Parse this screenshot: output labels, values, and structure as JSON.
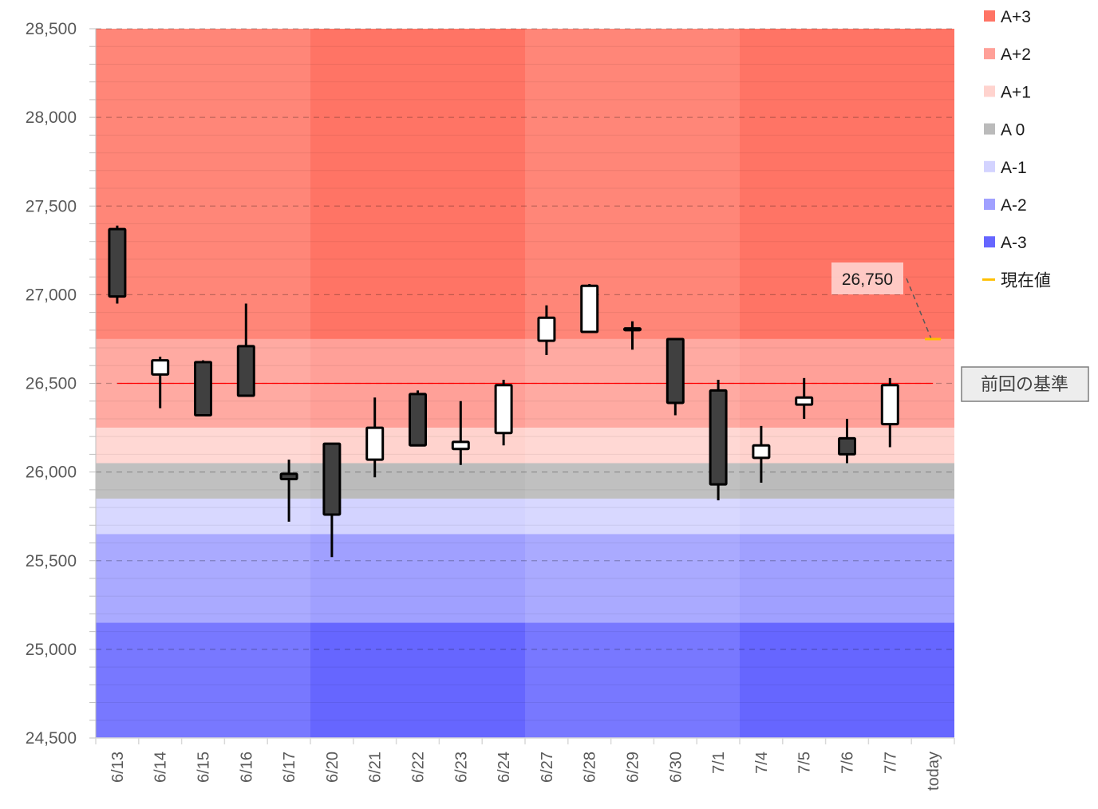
{
  "chart_data": {
    "type": "candlestick",
    "categories": [
      "6/13",
      "6/14",
      "6/15",
      "6/16",
      "6/17",
      "6/20",
      "6/21",
      "6/22",
      "6/23",
      "6/24",
      "6/27",
      "6/28",
      "6/29",
      "6/30",
      "7/1",
      "7/4",
      "7/5",
      "7/6",
      "7/7",
      "today"
    ],
    "week_groups": [
      [
        0,
        4
      ],
      [
        5,
        9
      ],
      [
        10,
        14
      ],
      [
        15,
        19
      ]
    ],
    "candles": [
      {
        "date": "6/13",
        "open": 27370,
        "high": 27390,
        "low": 26950,
        "close": 26990
      },
      {
        "date": "6/14",
        "open": 26550,
        "high": 26650,
        "low": 26360,
        "close": 26630
      },
      {
        "date": "6/15",
        "open": 26620,
        "high": 26630,
        "low": 26320,
        "close": 26320
      },
      {
        "date": "6/16",
        "open": 26710,
        "high": 26950,
        "low": 26430,
        "close": 26430
      },
      {
        "date": "6/17",
        "open": 25990,
        "high": 26070,
        "low": 25720,
        "close": 25960
      },
      {
        "date": "6/20",
        "open": 26160,
        "high": 26160,
        "low": 25520,
        "close": 25760
      },
      {
        "date": "6/21",
        "open": 26070,
        "high": 26420,
        "low": 25970,
        "close": 26250
      },
      {
        "date": "6/22",
        "open": 26440,
        "high": 26460,
        "low": 26150,
        "close": 26150
      },
      {
        "date": "6/23",
        "open": 26130,
        "high": 26400,
        "low": 26040,
        "close": 26170
      },
      {
        "date": "6/24",
        "open": 26220,
        "high": 26520,
        "low": 26150,
        "close": 26490
      },
      {
        "date": "6/27",
        "open": 26740,
        "high": 26940,
        "low": 26660,
        "close": 26870
      },
      {
        "date": "6/28",
        "open": 26790,
        "high": 27060,
        "low": 26790,
        "close": 27050
      },
      {
        "date": "6/29",
        "open": 26810,
        "high": 26850,
        "low": 26690,
        "close": 26800
      },
      {
        "date": "6/30",
        "open": 26750,
        "high": 26750,
        "low": 26320,
        "close": 26390
      },
      {
        "date": "7/1",
        "open": 26460,
        "high": 26520,
        "low": 25840,
        "close": 25930
      },
      {
        "date": "7/4",
        "open": 26080,
        "high": 26260,
        "low": 25940,
        "close": 26150
      },
      {
        "date": "7/5",
        "open": 26380,
        "high": 26530,
        "low": 26300,
        "close": 26420
      },
      {
        "date": "7/6",
        "open": 26190,
        "high": 26300,
        "low": 26050,
        "close": 26100
      },
      {
        "date": "7/7",
        "open": 26270,
        "high": 26530,
        "low": 26140,
        "close": 26490
      }
    ],
    "bands": [
      {
        "name": "A+3",
        "from": 26750,
        "to": 28500,
        "color": "#FF8678",
        "color_alt": "#FF7465"
      },
      {
        "name": "A+2",
        "from": 26250,
        "to": 26750,
        "color": "#FFAAA2",
        "color_alt": "#FFA098"
      },
      {
        "name": "A+1",
        "from": 26050,
        "to": 26250,
        "color": "#FFD8D4",
        "color_alt": "#FFD3CE"
      },
      {
        "name": "A 0",
        "from": 25850,
        "to": 26050,
        "color": "#C0C0C0",
        "color_alt": "#BBBBBB"
      },
      {
        "name": "A-1",
        "from": 25650,
        "to": 25850,
        "color": "#D8D8FF",
        "color_alt": "#D3D3FF"
      },
      {
        "name": "A-2",
        "from": 25150,
        "to": 25650,
        "color": "#AAAAFF",
        "color_alt": "#A0A0FF"
      },
      {
        "name": "A-3",
        "from": 24500,
        "to": 25150,
        "color": "#7878FF",
        "color_alt": "#6666FF"
      }
    ],
    "current_value": {
      "value": 26750,
      "label": "26,750",
      "category": "today",
      "color": "#FFC000"
    },
    "baseline": {
      "value": 26500,
      "label": "前回の基準",
      "color": "#FF0000"
    },
    "ylim": [
      24500,
      28500
    ],
    "y_ticks": [
      {
        "value": 28500,
        "label": "28,500"
      },
      {
        "value": 28000,
        "label": "28,000"
      },
      {
        "value": 27500,
        "label": "27,500"
      },
      {
        "value": 27000,
        "label": "27,000"
      },
      {
        "value": 26500,
        "label": "26,500"
      },
      {
        "value": 26000,
        "label": "26,000"
      },
      {
        "value": 25500,
        "label": "25,500"
      },
      {
        "value": 25000,
        "label": "25,000"
      },
      {
        "value": 24500,
        "label": "24,500"
      }
    ],
    "y_minor_step": 100,
    "grid": true,
    "legend_position": "right",
    "legend": [
      {
        "label": "A+3",
        "color": "#FF7465",
        "kind": "square"
      },
      {
        "label": "A+2",
        "color": "#FFA098",
        "kind": "square"
      },
      {
        "label": "A+1",
        "color": "#FFD3CE",
        "kind": "square"
      },
      {
        "label": "A 0",
        "color": "#BBBBBB",
        "kind": "square"
      },
      {
        "label": "A-1",
        "color": "#D3D3FF",
        "kind": "square"
      },
      {
        "label": "A-2",
        "color": "#A0A0FF",
        "kind": "square"
      },
      {
        "label": "A-3",
        "color": "#6666FF",
        "kind": "square"
      },
      {
        "label": "現在値",
        "color": "#FFC000",
        "kind": "line"
      }
    ],
    "colors": {
      "bull": "#FFFFFF",
      "bear": "#404040",
      "outline": "#000000"
    },
    "title": "",
    "xlabel": "",
    "ylabel": ""
  }
}
